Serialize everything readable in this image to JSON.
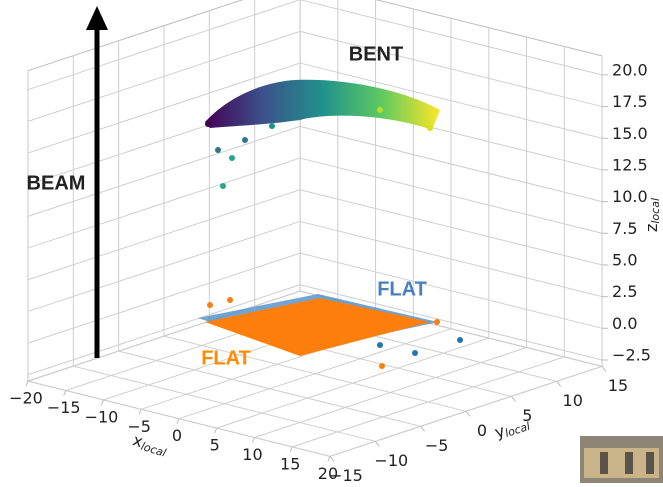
{
  "chart_data": {
    "type": "scatter3d",
    "annotations": [
      "BENT",
      "FLAT",
      "FLAT",
      "BEAM"
    ],
    "xlabel": "x",
    "xlabel_sub": "local",
    "ylabel": "y",
    "ylabel_sub": "local",
    "zlabel": "z",
    "zlabel_sub": "local",
    "xlim": [
      -20,
      20
    ],
    "ylim": [
      -15,
      15
    ],
    "zlim": [
      -3,
      21.5
    ],
    "xticks": [
      {
        "value": -20,
        "label": "−20"
      },
      {
        "value": -15,
        "label": "−15"
      },
      {
        "value": -10,
        "label": "−10"
      },
      {
        "value": -5,
        "label": "−5"
      },
      0,
      5,
      10,
      15,
      20
    ],
    "yticks": [
      {
        "value": -15,
        "label": "−15"
      },
      {
        "value": -10,
        "label": "−10"
      },
      {
        "value": -5,
        "label": "−5"
      },
      0,
      5,
      10,
      15
    ],
    "zticks": [
      {
        "value": -2.5,
        "label": "−2.5"
      },
      {
        "value": 0,
        "label": "0.0"
      },
      2.5,
      {
        "value": 5,
        "label": "5.0"
      },
      7.5,
      {
        "value": 10,
        "label": "10.0"
      },
      12.5,
      {
        "value": 15,
        "label": "15.0"
      },
      17.5,
      {
        "value": 20,
        "label": "20.0"
      }
    ],
    "grid": true
  }
}
